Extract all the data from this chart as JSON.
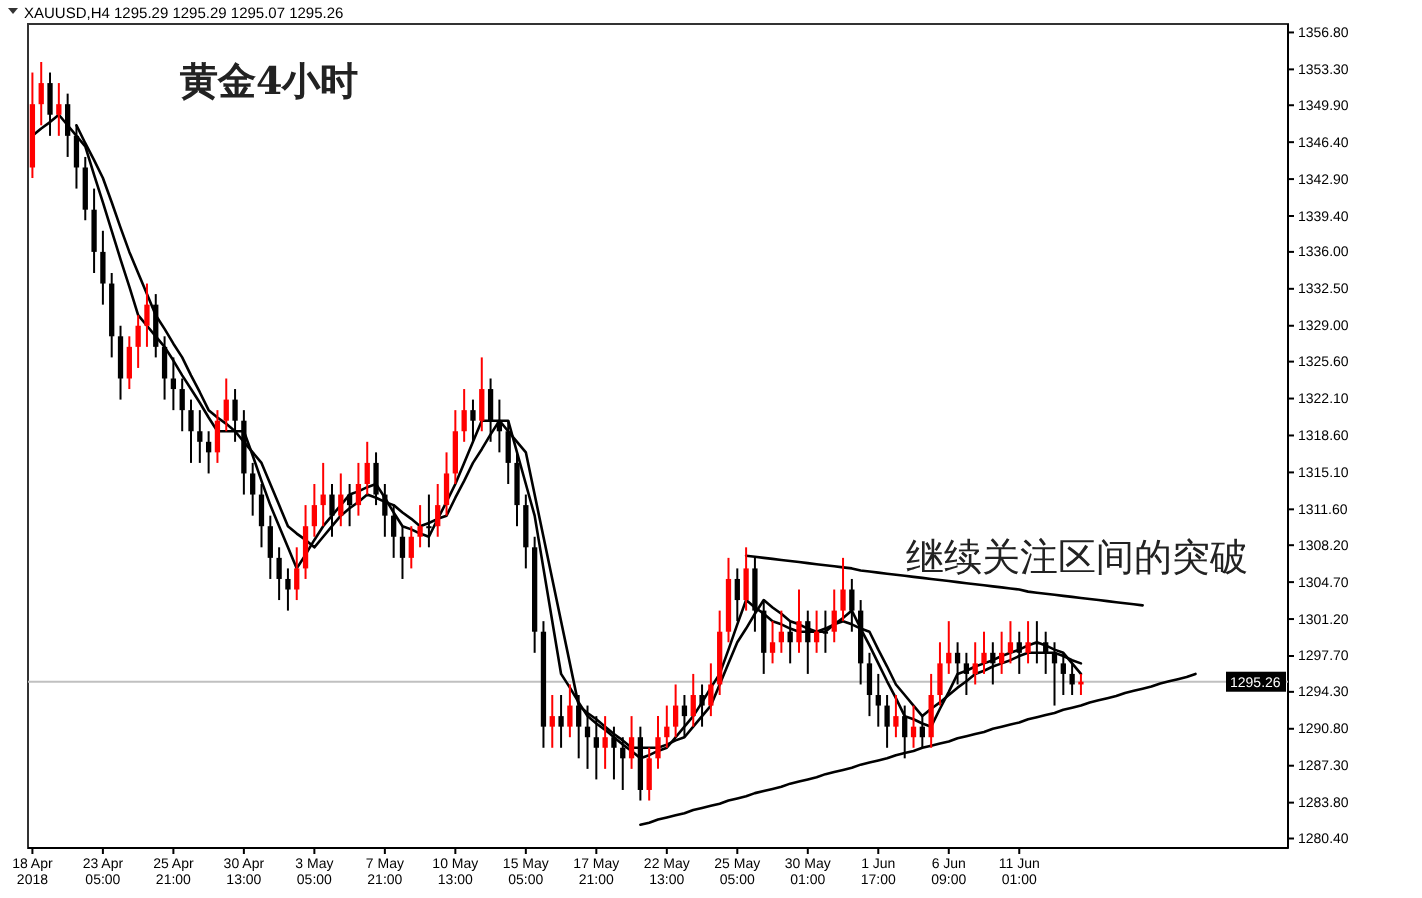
{
  "chart_data": {
    "type": "candlestick",
    "title": "黄金4小时",
    "subtitle": "XAUUSD,H4 1295.29 1295.29 1295.07 1295.26",
    "annotations": [
      "继续关注区间的突破"
    ],
    "categories": [
      "18 Apr 2018",
      null,
      null,
      null,
      null,
      null,
      null,
      null,
      "23 Apr 05:00",
      null,
      null,
      null,
      null,
      null,
      null,
      null,
      "25 Apr 21:00",
      null,
      null,
      null,
      null,
      null,
      null,
      null,
      "30 Apr 13:00",
      null,
      null,
      null,
      null,
      null,
      null,
      null,
      "3 May 05:00",
      null,
      null,
      null,
      null,
      null,
      null,
      null,
      "7 May 21:00",
      null,
      null,
      null,
      null,
      null,
      null,
      null,
      "10 May 13:00",
      null,
      null,
      null,
      null,
      null,
      null,
      null,
      "15 May 05:00",
      null,
      null,
      null,
      null,
      null,
      null,
      null,
      "17 May 21:00",
      null,
      null,
      null,
      null,
      null,
      null,
      null,
      "22 May 13:00",
      null,
      null,
      null,
      null,
      null,
      null,
      null,
      "25 May 05:00",
      null,
      null,
      null,
      null,
      null,
      null,
      null,
      "30 May 01:00",
      null,
      null,
      null,
      null,
      null,
      null,
      null,
      "1 Jun 17:00",
      null,
      null,
      null,
      null,
      null,
      null,
      null,
      "6 Jun 09:00",
      null,
      null,
      null,
      null,
      null,
      null,
      null,
      "11 Jun 01:00",
      null,
      null,
      null,
      null,
      null,
      null,
      null,
      null,
      null,
      null,
      null,
      null,
      null,
      null,
      null,
      null,
      null,
      null,
      null,
      null,
      null,
      null,
      null,
      null,
      null,
      null,
      null,
      null,
      null,
      null
    ],
    "ohlc": [
      [
        1344,
        1353,
        1343,
        1350
      ],
      [
        1350,
        1354,
        1348,
        1352
      ],
      [
        1352,
        1353,
        1347,
        1349
      ],
      [
        1349,
        1352,
        1347,
        1350
      ],
      [
        1350,
        1351,
        1345,
        1347
      ],
      [
        1347,
        1348,
        1342,
        1344
      ],
      [
        1344,
        1345,
        1339,
        1340
      ],
      [
        1340,
        1342,
        1334,
        1336
      ],
      [
        1336,
        1338,
        1331,
        1333
      ],
      [
        1333,
        1334,
        1326,
        1328
      ],
      [
        1328,
        1329,
        1322,
        1324
      ],
      [
        1324,
        1328,
        1323,
        1327
      ],
      [
        1327,
        1330,
        1325,
        1329
      ],
      [
        1329,
        1333,
        1327,
        1331
      ],
      [
        1331,
        1332,
        1326,
        1327
      ],
      [
        1327,
        1328,
        1322,
        1324
      ],
      [
        1324,
        1326,
        1321,
        1323
      ],
      [
        1323,
        1324,
        1319,
        1321
      ],
      [
        1321,
        1322,
        1316,
        1319
      ],
      [
        1319,
        1321,
        1316,
        1318
      ],
      [
        1318,
        1319,
        1315,
        1317
      ],
      [
        1317,
        1321,
        1316,
        1320
      ],
      [
        1320,
        1324,
        1319,
        1322
      ],
      [
        1322,
        1323,
        1318,
        1320
      ],
      [
        1320,
        1321,
        1313,
        1315
      ],
      [
        1315,
        1316,
        1311,
        1313
      ],
      [
        1313,
        1314,
        1308,
        1310
      ],
      [
        1310,
        1311,
        1305,
        1307
      ],
      [
        1307,
        1308,
        1303,
        1305
      ],
      [
        1305,
        1306,
        1302,
        1304
      ],
      [
        1304,
        1308,
        1303,
        1306
      ],
      [
        1306,
        1312,
        1305,
        1310
      ],
      [
        1310,
        1314,
        1309,
        1312
      ],
      [
        1312,
        1316,
        1310,
        1313
      ],
      [
        1313,
        1314,
        1309,
        1311
      ],
      [
        1311,
        1315,
        1310,
        1313
      ],
      [
        1313,
        1314,
        1310,
        1312
      ],
      [
        1312,
        1316,
        1311,
        1314
      ],
      [
        1314,
        1318,
        1313,
        1316
      ],
      [
        1316,
        1317,
        1312,
        1313
      ],
      [
        1313,
        1314,
        1309,
        1311
      ],
      [
        1311,
        1312,
        1307,
        1309
      ],
      [
        1309,
        1310,
        1305,
        1307
      ],
      [
        1307,
        1310,
        1306,
        1309
      ],
      [
        1309,
        1312,
        1308,
        1310
      ],
      [
        1310,
        1313,
        1308,
        1310
      ],
      [
        1310,
        1314,
        1309,
        1312
      ],
      [
        1312,
        1317,
        1311,
        1315
      ],
      [
        1315,
        1321,
        1314,
        1319
      ],
      [
        1319,
        1323,
        1318,
        1321
      ],
      [
        1321,
        1322,
        1318,
        1320
      ],
      [
        1320,
        1326,
        1319,
        1323
      ],
      [
        1323,
        1324,
        1318,
        1320
      ],
      [
        1320,
        1322,
        1317,
        1319
      ],
      [
        1319,
        1320,
        1314,
        1316
      ],
      [
        1316,
        1317,
        1310,
        1312
      ],
      [
        1312,
        1313,
        1306,
        1308
      ],
      [
        1308,
        1309,
        1298,
        1300
      ],
      [
        1300,
        1301,
        1289,
        1291
      ],
      [
        1291,
        1294,
        1289,
        1292
      ],
      [
        1292,
        1294,
        1289,
        1291
      ],
      [
        1291,
        1295,
        1290,
        1293
      ],
      [
        1293,
        1294,
        1288,
        1291
      ],
      [
        1291,
        1293,
        1287,
        1290
      ],
      [
        1290,
        1292,
        1286,
        1289
      ],
      [
        1289,
        1292,
        1287,
        1290
      ],
      [
        1290,
        1291,
        1286,
        1289
      ],
      [
        1289,
        1290,
        1285,
        1288
      ],
      [
        1288,
        1292,
        1287,
        1290
      ],
      [
        1290,
        1291,
        1284,
        1285
      ],
      [
        1285,
        1289,
        1284,
        1288
      ],
      [
        1288,
        1292,
        1287,
        1290
      ],
      [
        1290,
        1293,
        1289,
        1291
      ],
      [
        1291,
        1295,
        1290,
        1293
      ],
      [
        1293,
        1294,
        1290,
        1292
      ],
      [
        1292,
        1296,
        1291,
        1294
      ],
      [
        1294,
        1295,
        1291,
        1293
      ],
      [
        1293,
        1297,
        1292,
        1295
      ],
      [
        1295,
        1302,
        1294,
        1300
      ],
      [
        1300,
        1307,
        1299,
        1305
      ],
      [
        1305,
        1306,
        1301,
        1303
      ],
      [
        1303,
        1308,
        1302,
        1306
      ],
      [
        1306,
        1307,
        1300,
        1302
      ],
      [
        1302,
        1303,
        1296,
        1298
      ],
      [
        1298,
        1301,
        1297,
        1299
      ],
      [
        1299,
        1302,
        1298,
        1300
      ],
      [
        1300,
        1301,
        1297,
        1299
      ],
      [
        1299,
        1304,
        1298,
        1301
      ],
      [
        1301,
        1302,
        1296,
        1299
      ],
      [
        1299,
        1302,
        1298,
        1300
      ],
      [
        1300,
        1302,
        1298,
        1300
      ],
      [
        1300,
        1304,
        1299,
        1302
      ],
      [
        1302,
        1307,
        1301,
        1304
      ],
      [
        1304,
        1305,
        1300,
        1302
      ],
      [
        1302,
        1303,
        1295,
        1297
      ],
      [
        1297,
        1298,
        1292,
        1294
      ],
      [
        1294,
        1296,
        1291,
        1293
      ],
      [
        1293,
        1294,
        1289,
        1291
      ],
      [
        1291,
        1294,
        1290,
        1292
      ],
      [
        1292,
        1293,
        1288,
        1290
      ],
      [
        1290,
        1293,
        1289,
        1291
      ],
      [
        1291,
        1292,
        1289,
        1290
      ],
      [
        1290,
        1296,
        1289,
        1294
      ],
      [
        1294,
        1299,
        1293,
        1297
      ],
      [
        1297,
        1301,
        1296,
        1298
      ],
      [
        1298,
        1299,
        1295,
        1297
      ],
      [
        1297,
        1298,
        1294,
        1296
      ],
      [
        1296,
        1299,
        1295,
        1297
      ],
      [
        1297,
        1300,
        1296,
        1298
      ],
      [
        1298,
        1299,
        1295,
        1297
      ],
      [
        1297,
        1300,
        1296,
        1298
      ],
      [
        1298,
        1301,
        1297,
        1299
      ],
      [
        1299,
        1300,
        1296,
        1298
      ],
      [
        1298,
        1301,
        1297,
        1299
      ],
      [
        1299,
        1301,
        1297,
        1299
      ],
      [
        1299,
        1300,
        1296,
        1298
      ],
      [
        1298,
        1299,
        1293,
        1297
      ],
      [
        1297,
        1298,
        1294,
        1296
      ],
      [
        1296,
        1297,
        1294,
        1295
      ],
      [
        1295,
        1296,
        1294,
        1295.26
      ],
      null,
      null,
      null,
      null,
      null,
      null,
      null,
      null,
      null,
      null,
      null,
      null,
      null,
      null,
      null,
      null,
      null,
      null,
      null,
      null,
      null,
      null,
      null
    ],
    "colors": [
      "#ff0000",
      "#ff0000",
      "#000000",
      "#ff0000",
      "#000000",
      "#000000",
      "#000000",
      "#000000",
      "#000000",
      "#000000",
      "#000000",
      "#ff0000",
      "#ff0000",
      "#ff0000",
      "#000000",
      "#000000",
      "#000000",
      "#000000",
      "#000000",
      "#000000",
      "#000000",
      "#ff0000",
      "#ff0000",
      "#000000",
      "#000000",
      "#000000",
      "#000000",
      "#000000",
      "#000000",
      "#000000",
      "#ff0000",
      "#ff0000",
      "#ff0000",
      "#ff0000",
      "#000000",
      "#ff0000",
      "#000000",
      "#ff0000",
      "#ff0000",
      "#000000",
      "#000000",
      "#000000",
      "#000000",
      "#ff0000",
      "#ff0000",
      "#000000",
      "#ff0000",
      "#ff0000",
      "#ff0000",
      "#ff0000",
      "#000000",
      "#ff0000",
      "#000000",
      "#000000",
      "#000000",
      "#000000",
      "#000000",
      "#000000",
      "#000000",
      "#ff0000",
      "#000000",
      "#ff0000",
      "#000000",
      "#000000",
      "#000000",
      "#ff0000",
      "#000000",
      "#000000",
      "#ff0000",
      "#000000",
      "#ff0000",
      "#ff0000",
      "#ff0000",
      "#ff0000",
      "#000000",
      "#ff0000",
      "#000000",
      "#ff0000",
      "#ff0000",
      "#ff0000",
      "#000000",
      "#ff0000",
      "#000000",
      "#000000",
      "#ff0000",
      "#ff0000",
      "#000000",
      "#ff0000",
      "#000000",
      "#ff0000",
      "#000000",
      "#ff0000",
      "#ff0000",
      "#000000",
      "#000000",
      "#000000",
      "#000000",
      "#000000",
      "#ff0000",
      "#000000",
      "#ff0000",
      "#000000",
      "#ff0000",
      "#ff0000",
      "#ff0000",
      "#000000",
      "#000000",
      "#ff0000",
      "#ff0000",
      "#000000",
      "#ff0000",
      "#ff0000",
      "#000000",
      "#ff0000",
      "#000000",
      "#000000",
      "#000000",
      "#000000",
      "#000000",
      "#ff0000",
      null,
      null,
      null,
      null,
      null,
      null,
      null,
      null,
      null,
      null,
      null,
      null,
      null,
      null,
      null,
      null,
      null,
      null,
      null,
      null,
      null,
      null,
      null
    ],
    "series": [
      {
        "type": "line",
        "color": "#000000",
        "values": [
          1347,
          1347.7,
          1348.3,
          1349,
          1348,
          1347,
          1346,
          1343.3,
          1340.7,
          1338,
          1335.3,
          1332.7,
          1330,
          1329,
          1328,
          1327,
          1325.7,
          1324.3,
          1323,
          1321.7,
          1320.3,
          1319,
          1319,
          1319,
          1319,
          1316.7,
          1314.3,
          1312,
          1310,
          1308,
          1306,
          1307.3,
          1308.7,
          1310,
          1311,
          1312,
          1313,
          1313.3,
          1313.7,
          1314,
          1312.7,
          1311.3,
          1310,
          1309.7,
          1309.3,
          1309,
          1310.7,
          1312.3,
          1314,
          1316,
          1318,
          1320,
          1320,
          1320,
          1320,
          1317,
          1314,
          1311,
          1306,
          1301,
          1296,
          1294.7,
          1293.3,
          1292,
          1291.3,
          1290.7,
          1290,
          1289.3,
          1288.7,
          1288,
          1288.3,
          1288.7,
          1289,
          1290,
          1291,
          1292,
          1293.3,
          1294.7,
          1296,
          1298.3,
          1300.7,
          1303,
          1302.3,
          1301.7,
          1301,
          1300.7,
          1300.3,
          1300,
          1300,
          1300,
          1300,
          1300.7,
          1301.3,
          1302,
          1300.3,
          1298.7,
          1297,
          1295.3,
          1293.7,
          1292,
          1291.7,
          1291.3,
          1291,
          1292.7,
          1294.3,
          1296,
          1296.3,
          1296.7,
          1297,
          1297.3,
          1297.7,
          1298,
          1298.3,
          1298.7,
          1299,
          1298.7,
          1298.3,
          1298,
          1297,
          1296,
          null,
          null,
          null,
          null,
          null,
          null,
          null,
          null,
          null,
          null,
          null,
          null,
          null,
          null,
          null,
          null,
          null,
          null,
          null,
          null,
          null,
          null,
          null
        ]
      },
      {
        "type": "line",
        "color": "#000000",
        "values": [
          null,
          null,
          null,
          null,
          null,
          1348,
          1346.3,
          1344.7,
          1343,
          1340.7,
          1338.3,
          1336,
          1334,
          1332,
          1330,
          1328.7,
          1327.3,
          1326,
          1324.3,
          1322.7,
          1321,
          1320.3,
          1319.7,
          1319,
          1318,
          1317,
          1316,
          1314,
          1312,
          1310,
          1309.3,
          1308.7,
          1308,
          1309,
          1310,
          1311,
          1311.7,
          1312.3,
          1313,
          1312.7,
          1312.3,
          1312,
          1311.3,
          1310.7,
          1310,
          1310.3,
          1310.7,
          1311,
          1312.7,
          1314.3,
          1316,
          1317.3,
          1318.7,
          1320,
          1319,
          1318,
          1317,
          1313,
          1309,
          1305,
          1301,
          1297,
          1293,
          1292.3,
          1291.7,
          1291,
          1290.3,
          1289.7,
          1289,
          1289,
          1289,
          1289,
          1289.3,
          1289.7,
          1290,
          1291,
          1292,
          1293,
          1295,
          1297,
          1299,
          1300.3,
          1301.7,
          1303,
          1302.3,
          1301.7,
          1301,
          1300.7,
          1300.3,
          1300,
          1300.3,
          1300.7,
          1301,
          1300.7,
          1300.3,
          1300,
          1298.3,
          1296.7,
          1295,
          1294,
          1293,
          1292,
          1292.7,
          1293.3,
          1294,
          1294.7,
          1295.3,
          1296,
          1296.3,
          1296.7,
          1297,
          1297.3,
          1297.7,
          1298,
          1298,
          1298,
          1298,
          1297.7,
          1297.3,
          1297,
          null,
          null,
          null,
          null,
          null,
          null,
          null,
          null,
          null,
          null,
          null,
          null,
          null,
          null,
          null,
          null,
          null,
          null,
          null,
          null,
          null,
          null,
          null
        ]
      },
      {
        "type": "line",
        "color": "#000000",
        "values": [
          null,
          null,
          null,
          null,
          null,
          null,
          null,
          null,
          null,
          null,
          null,
          null,
          null,
          null,
          null,
          null,
          null,
          null,
          null,
          null,
          null,
          null,
          null,
          null,
          null,
          null,
          null,
          null,
          null,
          null,
          null,
          null,
          null,
          null,
          null,
          null,
          null,
          null,
          null,
          null,
          null,
          null,
          null,
          null,
          null,
          null,
          null,
          null,
          null,
          null,
          null,
          null,
          null,
          null,
          null,
          null,
          null,
          null,
          null,
          null,
          null,
          null,
          null,
          null,
          null,
          null,
          null,
          null,
          null,
          1281.7,
          1281.9,
          1282.2,
          1282.4,
          1282.6,
          1282.8,
          1283.1,
          1283.3,
          1283.5,
          1283.7,
          1284.0,
          1284.2,
          1284.4,
          1284.7,
          1284.9,
          1285.1,
          1285.3,
          1285.6,
          1285.8,
          1286.0,
          1286.2,
          1286.5,
          1286.7,
          1286.9,
          1287.1,
          1287.4,
          1287.6,
          1287.8,
          1288.0,
          1288.3,
          1288.5,
          1288.7,
          1289.0,
          1289.2,
          1289.4,
          1289.6,
          1289.9,
          1290.1,
          1290.3,
          1290.5,
          1290.8,
          1291.0,
          1291.2,
          1291.4,
          1291.7,
          1291.9,
          1292.1,
          1292.3,
          1292.6,
          1292.8,
          1293.0,
          1293.3,
          1293.5,
          1293.7,
          1293.9,
          1294.2,
          1294.4,
          1294.6,
          1294.8,
          1295.1,
          1295.3,
          1295.5,
          1295.7,
          1296.0,
          null,
          null,
          null,
          null,
          null,
          null,
          null,
          null,
          null,
          null
        ]
      },
      {
        "type": "line",
        "color": "#000000",
        "values": [
          null,
          null,
          null,
          null,
          null,
          null,
          null,
          null,
          null,
          null,
          null,
          null,
          null,
          null,
          null,
          null,
          null,
          null,
          null,
          null,
          null,
          null,
          null,
          null,
          null,
          null,
          null,
          null,
          null,
          null,
          null,
          null,
          null,
          null,
          null,
          null,
          null,
          null,
          null,
          null,
          null,
          null,
          null,
          null,
          null,
          null,
          null,
          null,
          null,
          null,
          null,
          null,
          null,
          null,
          null,
          null,
          null,
          null,
          null,
          null,
          null,
          null,
          null,
          null,
          null,
          null,
          null,
          null,
          null,
          null,
          null,
          null,
          null,
          null,
          null,
          null,
          null,
          null,
          null,
          null,
          null,
          1307.2,
          1307.1,
          1307.0,
          1306.9,
          1306.8,
          1306.7,
          1306.6,
          1306.5,
          1306.4,
          1306.3,
          1306.2,
          1306.1,
          1306.0,
          1305.8,
          1305.7,
          1305.6,
          1305.5,
          1305.4,
          1305.3,
          1305.2,
          1305.1,
          1305.0,
          1304.9,
          1304.8,
          1304.7,
          1304.6,
          1304.5,
          1304.4,
          1304.3,
          1304.2,
          1304.1,
          1304.0,
          1303.8,
          1303.7,
          1303.6,
          1303.5,
          1303.4,
          1303.3,
          1303.2,
          1303.1,
          1303.0,
          1302.9,
          1302.8,
          1302.7,
          1302.6,
          1302.5,
          null,
          null,
          null,
          null,
          null,
          null,
          null,
          null,
          null,
          null,
          null,
          null,
          null,
          null,
          null,
          null
        ]
      }
    ],
    "ref_lines": [
      {
        "axis": "y",
        "value": 1295.26,
        "label": "1295.26",
        "color": "#c0c0c0"
      }
    ],
    "ylim": [
      1279.5,
      1357.6
    ],
    "yticks": [
      {
        "value": 1280.4,
        "label": "1280.40"
      },
      {
        "value": 1283.8,
        "label": "1283.80"
      },
      {
        "value": 1287.3,
        "label": "1287.30"
      },
      {
        "value": 1290.8,
        "label": "1290.80"
      },
      {
        "value": 1294.3,
        "label": "1294.30"
      },
      {
        "value": 1297.7,
        "label": "1297.70"
      },
      {
        "value": 1301.2,
        "label": "1301.20"
      },
      {
        "value": 1304.7,
        "label": "1304.70"
      },
      {
        "value": 1308.2,
        "label": "1308.20"
      },
      {
        "value": 1311.6,
        "label": "1311.60"
      },
      {
        "value": 1315.1,
        "label": "1315.10"
      },
      {
        "value": 1318.6,
        "label": "1318.60"
      },
      {
        "value": 1322.1,
        "label": "1322.10"
      },
      {
        "value": 1325.6,
        "label": "1325.60"
      },
      {
        "value": 1329,
        "label": "1329.00"
      },
      {
        "value": 1332.5,
        "label": "1332.50"
      },
      {
        "value": 1336,
        "label": "1336.00"
      },
      {
        "value": 1339.4,
        "label": "1339.40"
      },
      {
        "value": 1342.9,
        "label": "1342.90"
      },
      {
        "value": 1346.4,
        "label": "1346.40"
      },
      {
        "value": 1349.9,
        "label": "1349.90"
      },
      {
        "value": 1353.3,
        "label": "1353.30"
      },
      {
        "value": 1356.8,
        "label": "1356.80"
      }
    ]
  }
}
